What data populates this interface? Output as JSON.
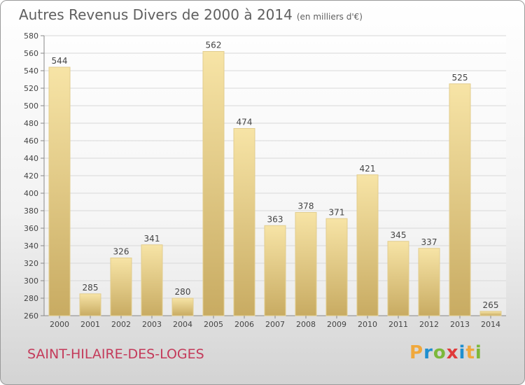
{
  "title": "Autres Revenus Divers de 2000 à 2014",
  "unit": "(en milliers d'€)",
  "commune": "SAINT-HILAIRE-DES-LOGES",
  "brand": {
    "text": "Proxiti",
    "letters": [
      {
        "char": "P",
        "color": "#f0a83c"
      },
      {
        "char": "r",
        "color": "#1f8fcf"
      },
      {
        "char": "o",
        "color": "#7cb83a"
      },
      {
        "char": "x",
        "color": "#e03a3a"
      },
      {
        "char": "i",
        "color": "#1f8fcf"
      },
      {
        "char": "t",
        "color": "#f0a83c"
      },
      {
        "char": "i",
        "color": "#7cb83a"
      }
    ]
  },
  "colors": {
    "bar_light": "#f7e4a6",
    "bar_dark": "#c8ab62",
    "accent": "#c43a5a",
    "grid": "#d8d8d8"
  },
  "chart_data": {
    "type": "bar",
    "title": "Autres Revenus Divers de 2000 à 2014",
    "categories": [
      "2000",
      "2001",
      "2002",
      "2003",
      "2004",
      "2005",
      "2006",
      "2007",
      "2008",
      "2009",
      "2010",
      "2011",
      "2012",
      "2013",
      "2014"
    ],
    "values": [
      544,
      285,
      326,
      341,
      280,
      562,
      474,
      363,
      378,
      371,
      421,
      345,
      337,
      525,
      265
    ],
    "ylim": [
      260,
      580
    ],
    "ystep": 20,
    "grid": true,
    "data_labels": true
  }
}
